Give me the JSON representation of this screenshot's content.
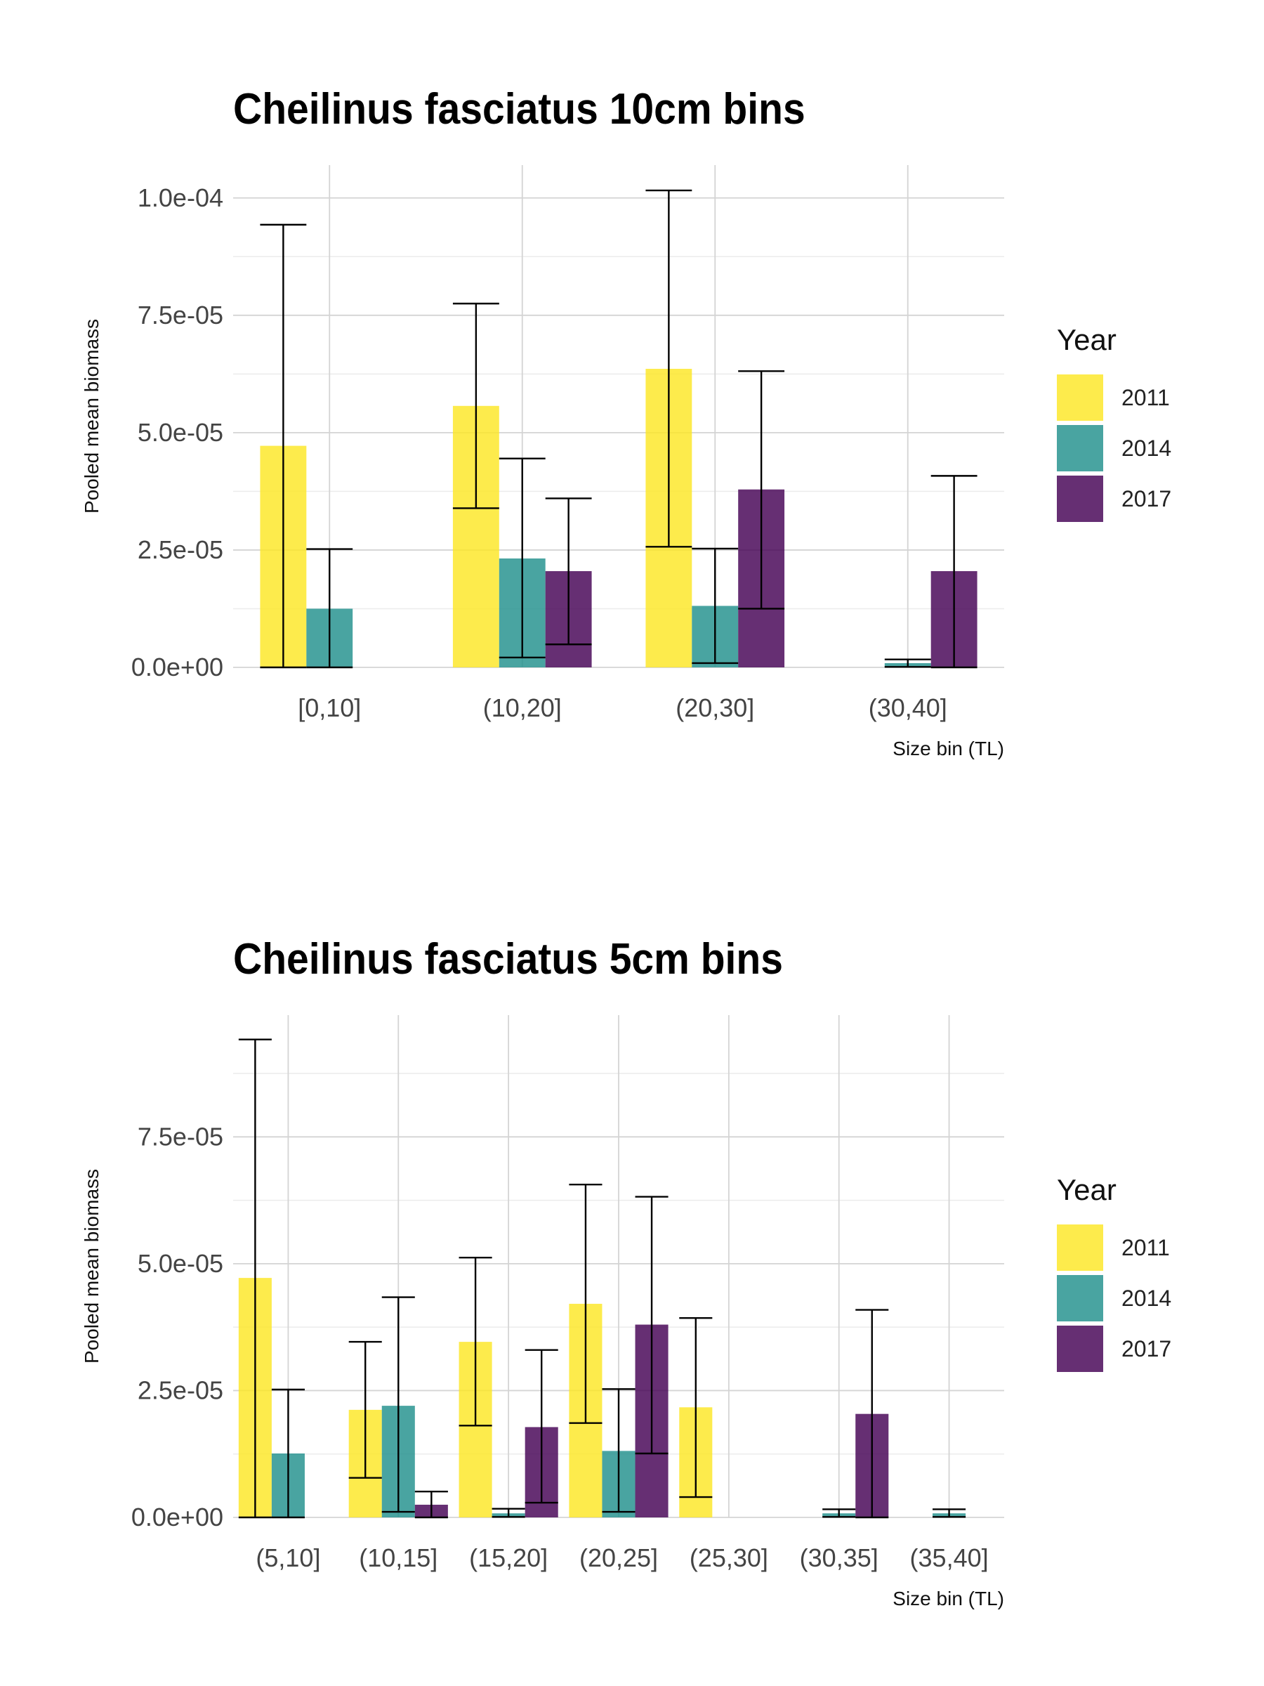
{
  "chart_data": [
    {
      "type": "bar",
      "title": "Cheilinus fasciatus 10cm bins",
      "xlabel": "Size bin (TL)",
      "ylabel": "Pooled mean biomass",
      "categories": [
        "[0,10]",
        "(10,20]",
        "(20,30]",
        "(30,40]"
      ],
      "ylim": [
        0,
        0.000107
      ],
      "yticks": [
        "0.0e+00",
        "2.5e-05",
        "5.0e-05",
        "7.5e-05",
        "1.0e-04"
      ],
      "ytick_values": [
        0,
        2.5e-05,
        5e-05,
        7.5e-05,
        0.0001
      ],
      "grid": true,
      "legend_title": "Year",
      "legend_position": "right",
      "series": [
        {
          "name": "2011",
          "color": "#FDE725",
          "values": [
            4.72e-05,
            5.57e-05,
            6.36e-05,
            null
          ],
          "err_low": [
            0,
            3.39e-05,
            2.57e-05,
            null
          ],
          "err_high": [
            9.43e-05,
            7.75e-05,
            0.0001016,
            null
          ]
        },
        {
          "name": "2014",
          "color": "#21908C",
          "values": [
            1.25e-05,
            2.32e-05,
            1.31e-05,
            9e-07
          ],
          "err_low": [
            0,
            2.1e-06,
            9e-07,
            1e-07
          ],
          "err_high": [
            2.52e-05,
            4.45e-05,
            2.53e-05,
            1.7e-06
          ]
        },
        {
          "name": "2017",
          "color": "#440154",
          "values": [
            null,
            2.05e-05,
            3.79e-05,
            2.05e-05
          ],
          "err_low": [
            null,
            4.9e-06,
            1.25e-05,
            0
          ],
          "err_high": [
            null,
            3.6e-05,
            6.31e-05,
            4.08e-05
          ]
        }
      ]
    },
    {
      "type": "bar",
      "title": "Cheilinus fasciatus 5cm bins",
      "xlabel": "Size bin (TL)",
      "ylabel": "Pooled mean biomass",
      "categories": [
        "(5,10]",
        "(10,15]",
        "(15,20]",
        "(20,25]",
        "(25,30]",
        "(30,35]",
        "(35,40]"
      ],
      "ylim": [
        0,
        9.9e-05
      ],
      "yticks": [
        "0.0e+00",
        "2.5e-05",
        "5.0e-05",
        "7.5e-05"
      ],
      "ytick_values": [
        0,
        2.5e-05,
        5e-05,
        7.5e-05
      ],
      "grid": true,
      "legend_title": "Year",
      "legend_position": "right",
      "series": [
        {
          "name": "2011",
          "color": "#FDE725",
          "values": [
            4.72e-05,
            2.12e-05,
            3.46e-05,
            4.21e-05,
            2.17e-05,
            null,
            null
          ],
          "err_low": [
            0,
            7.8e-06,
            1.81e-05,
            1.86e-05,
            4e-06,
            null,
            null
          ],
          "err_high": [
            9.42e-05,
            3.46e-05,
            5.12e-05,
            6.56e-05,
            3.93e-05,
            null,
            null
          ]
        },
        {
          "name": "2014",
          "color": "#21908C",
          "values": [
            1.26e-05,
            2.2e-05,
            8e-07,
            1.31e-05,
            null,
            8e-07,
            8e-07
          ],
          "err_low": [
            0,
            1.1e-06,
            1e-07,
            1.1e-06,
            null,
            1e-07,
            1e-07
          ],
          "err_high": [
            2.52e-05,
            4.34e-05,
            1.7e-06,
            2.53e-05,
            null,
            1.6e-06,
            1.6e-06
          ]
        },
        {
          "name": "2017",
          "color": "#440154",
          "values": [
            null,
            2.5e-06,
            1.78e-05,
            3.8e-05,
            null,
            2.04e-05,
            null
          ],
          "err_low": [
            null,
            0,
            2.9e-06,
            1.26e-05,
            null,
            0,
            null
          ],
          "err_high": [
            null,
            5.1e-06,
            3.3e-05,
            6.32e-05,
            null,
            4.09e-05,
            null
          ]
        }
      ]
    }
  ]
}
